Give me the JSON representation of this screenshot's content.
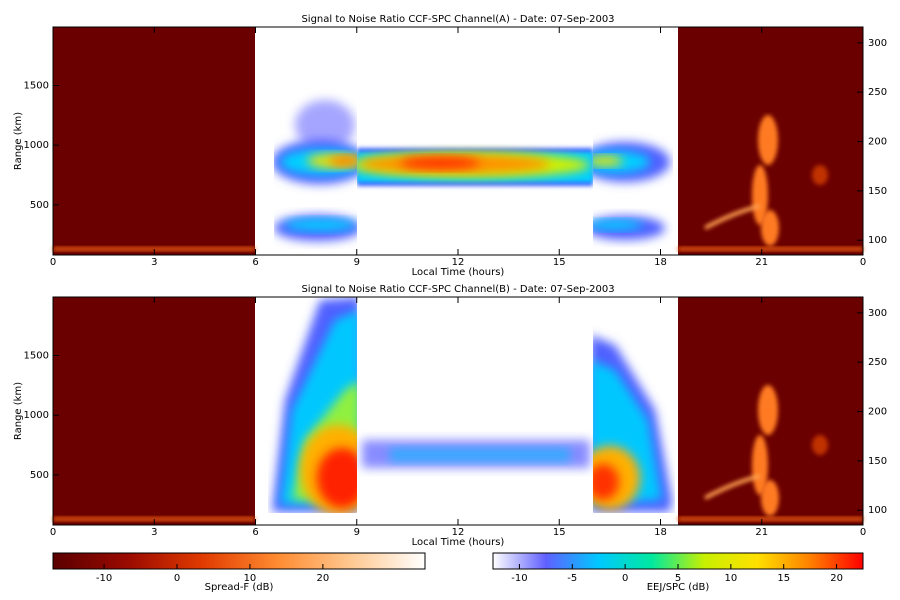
{
  "chart_data": [
    {
      "type": "heatmap",
      "title": "Signal to Noise Ratio CCF-SPC Channel(A) - Date: 07-Sep-2003",
      "x_label": "Local Time (hours)",
      "y_label": "Range (km)",
      "xlim": [
        0,
        24
      ],
      "xticks": [
        0,
        3,
        6,
        9,
        12,
        15,
        18,
        21,
        {
          "value": 24,
          "label": "0"
        }
      ],
      "ylim": [
        80,
        1990
      ],
      "yticks": [
        500,
        1000,
        1500
      ],
      "y2lim": [
        85,
        316
      ],
      "y2ticks": [
        100,
        150,
        200,
        250,
        300
      ]
    },
    {
      "type": "heatmap",
      "title": "Signal to Noise Ratio CCF-SPC Channel(B) - Date: 07-Sep-2003",
      "x_label": "Local Time (hours)",
      "y_label": "Range (km)",
      "xlim": [
        0,
        24
      ],
      "xticks": [
        0,
        3,
        6,
        9,
        12,
        15,
        18,
        21,
        {
          "value": 24,
          "label": "0"
        }
      ],
      "ylim": [
        80,
        1990
      ],
      "yticks": [
        500,
        1000,
        1500
      ],
      "y2lim": [
        85,
        316
      ],
      "y2ticks": [
        100,
        150,
        200,
        250,
        300
      ]
    }
  ],
  "colorbars": [
    {
      "label": "Spread-F (dB)",
      "lim": [
        -17,
        34
      ],
      "ticks": [
        -10,
        0,
        10,
        20
      ],
      "colors": [
        "#5a0000",
        "#9a0a00",
        "#e03a00",
        "#ff8a30",
        "#ffc890",
        "#ffffff"
      ]
    },
    {
      "label": "EEJ/SPC (dB)",
      "lim": [
        -12.5,
        22.5
      ],
      "ticks": [
        -10,
        -5,
        0,
        5,
        10,
        15,
        20
      ],
      "colors": [
        "#ffffff",
        "#6060ff",
        "#00c8ff",
        "#00e8a0",
        "#c8f000",
        "#ffe000",
        "#ff8000",
        "#ff0000"
      ]
    }
  ]
}
